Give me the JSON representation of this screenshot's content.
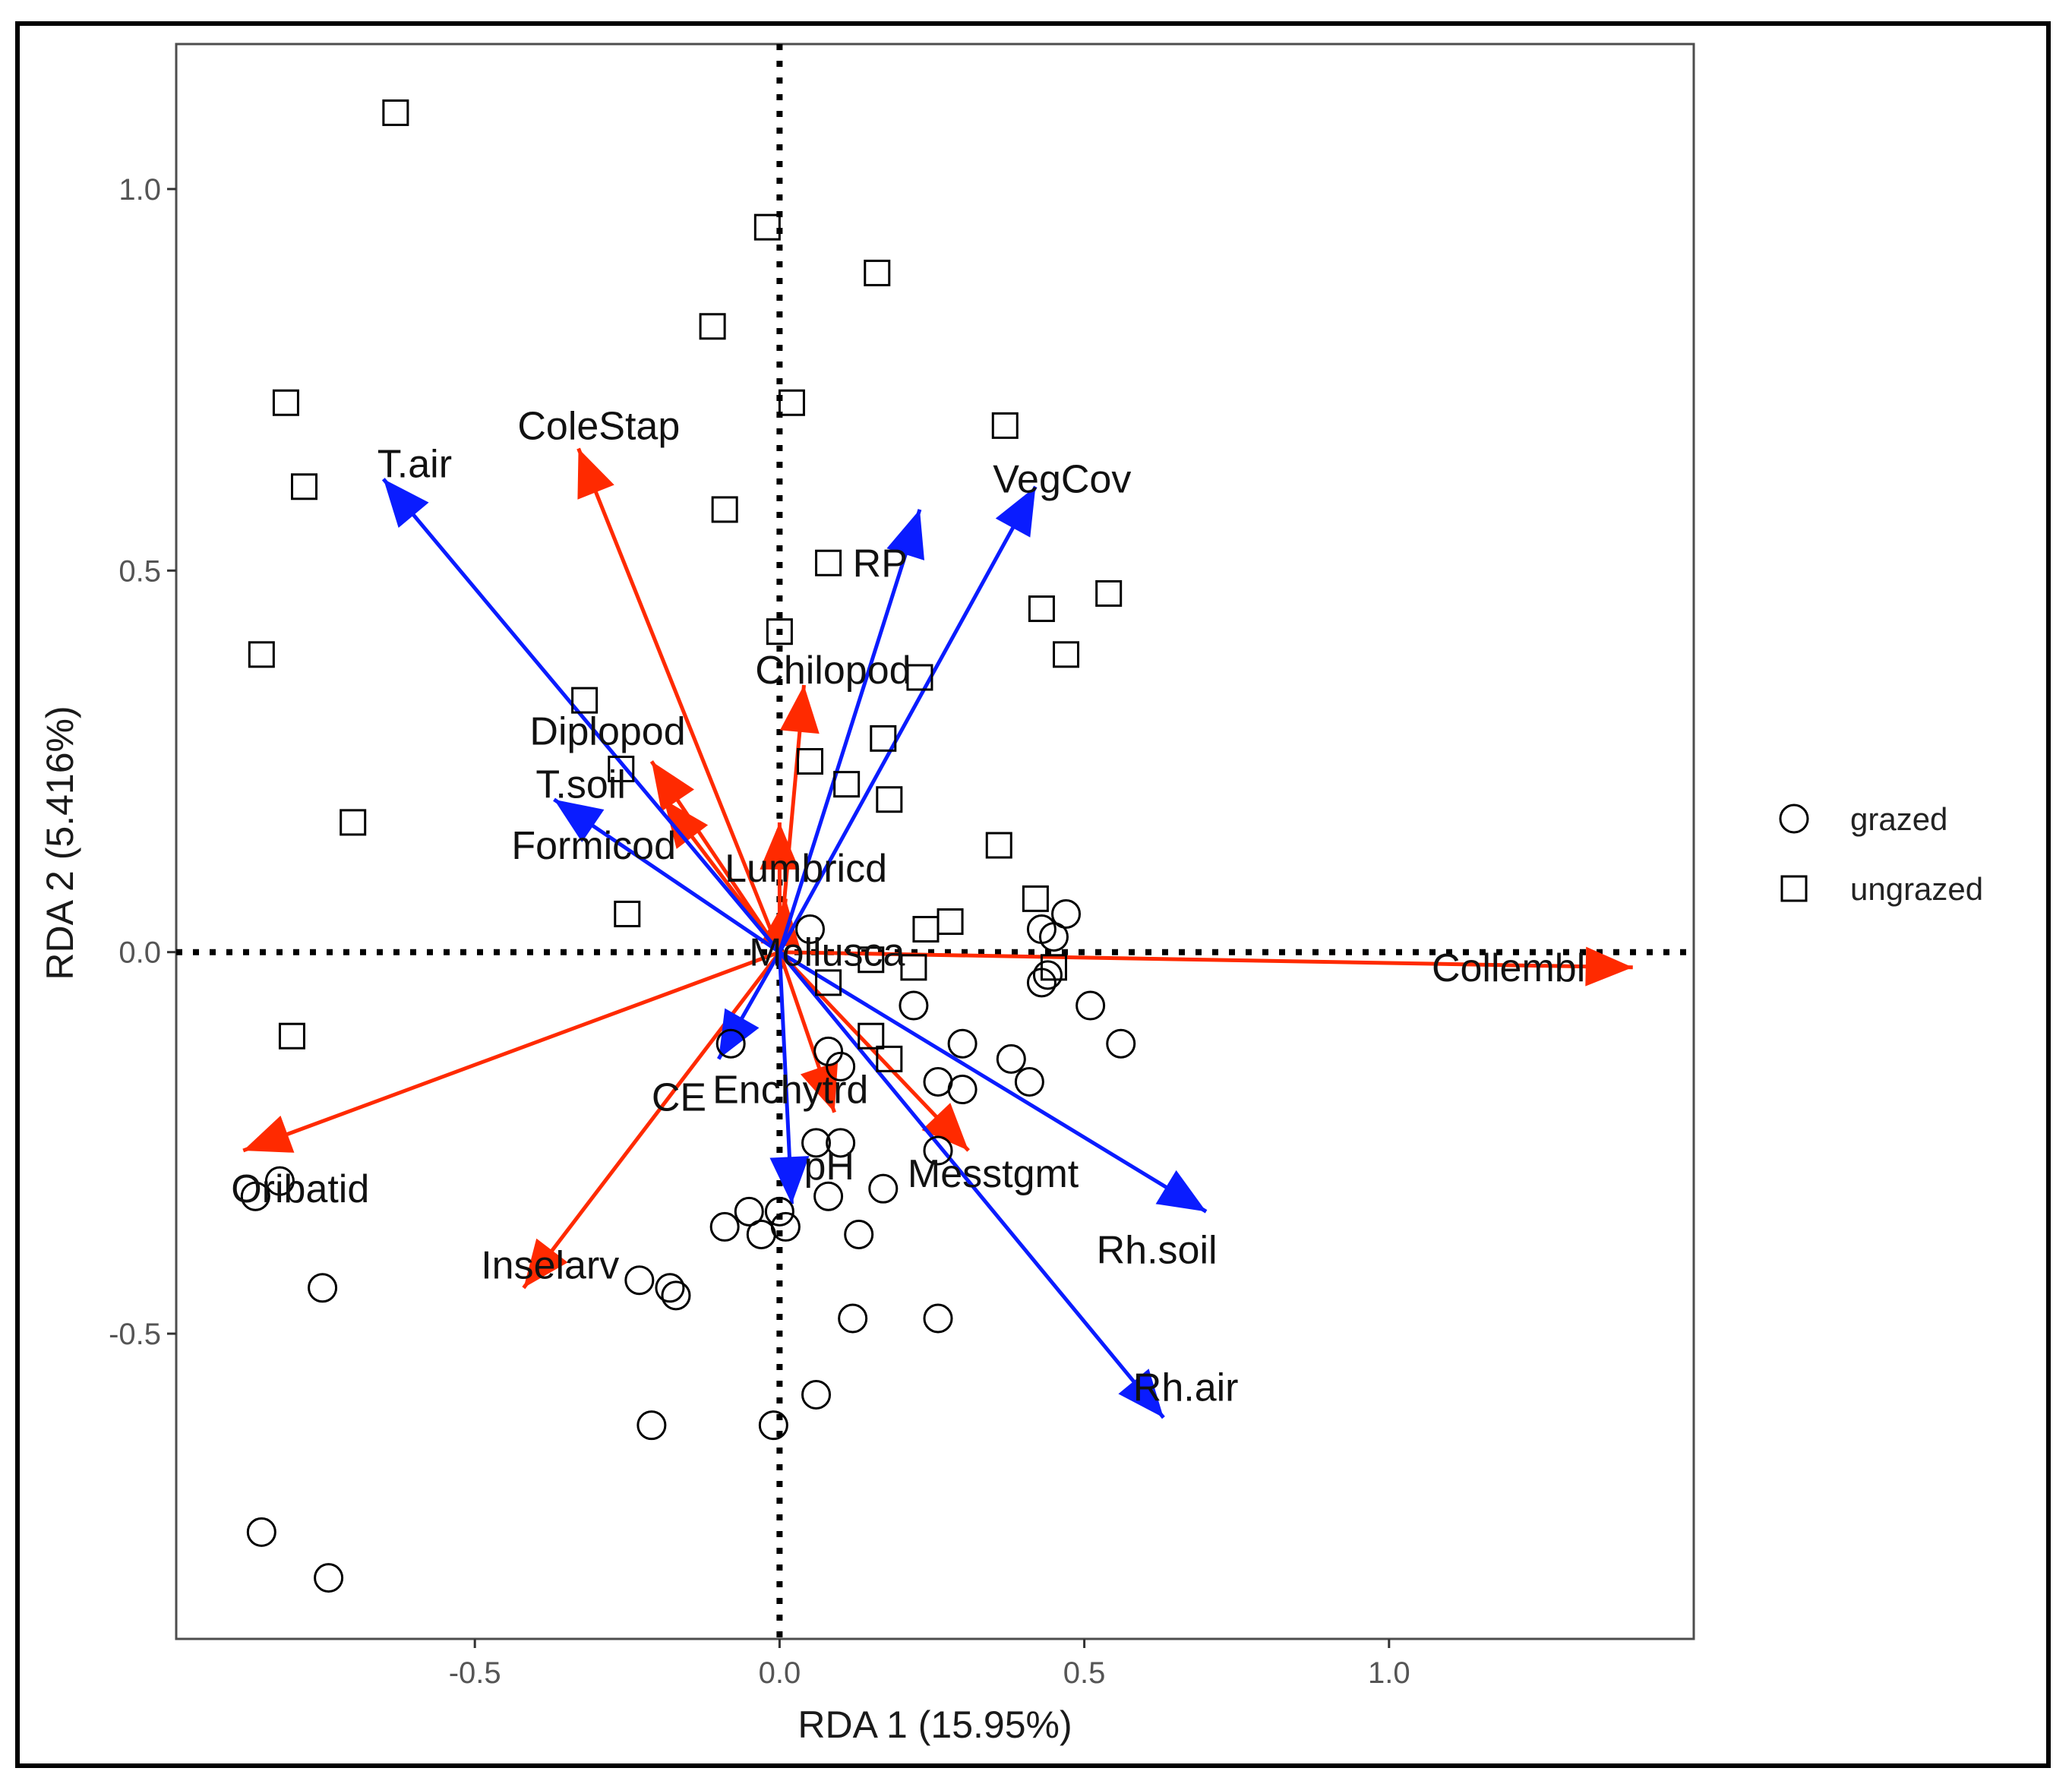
{
  "chart_data": {
    "type": "scatter",
    "xlabel": "RDA 1 (15.95%)",
    "ylabel": "RDA 2 (5.416%)",
    "xlim": [
      -0.99,
      1.5
    ],
    "ylim": [
      -0.9,
      1.19
    ],
    "xticks": [
      -0.5,
      0.0,
      0.5,
      1.0
    ],
    "xtick_labels": [
      "-0.5",
      "0.0",
      "0.5",
      "1.0"
    ],
    "yticks": [
      -0.5,
      0.0,
      0.5,
      1.0
    ],
    "ytick_labels": [
      "-0.5",
      "0.0",
      "0.5",
      "1.0"
    ],
    "grid": false,
    "reference_lines": {
      "x": 0,
      "y": 0,
      "style": "dotted"
    },
    "legend": {
      "position": "right",
      "entries": [
        {
          "label": "grazed",
          "shape": "circle"
        },
        {
          "label": "ungrazed",
          "shape": "square"
        }
      ]
    },
    "colors": {
      "species": "#ff2a00",
      "environment": "#0a1cff",
      "points": "#000000"
    },
    "series": [
      {
        "name": "grazed",
        "shape": "circle",
        "points": [
          [
            0.05,
            0.03
          ],
          [
            0.47,
            0.05
          ],
          [
            0.43,
            0.03
          ],
          [
            0.45,
            0.02
          ],
          [
            0.44,
            -0.03
          ],
          [
            0.43,
            -0.04
          ],
          [
            0.22,
            -0.07
          ],
          [
            0.51,
            -0.07
          ],
          [
            0.56,
            -0.12
          ],
          [
            0.3,
            -0.12
          ],
          [
            0.08,
            -0.13
          ],
          [
            0.38,
            -0.14
          ],
          [
            0.1,
            -0.15
          ],
          [
            0.26,
            -0.17
          ],
          [
            0.3,
            -0.18
          ],
          [
            0.41,
            -0.17
          ],
          [
            -0.08,
            -0.12
          ],
          [
            0.06,
            -0.25
          ],
          [
            0.1,
            -0.25
          ],
          [
            0.26,
            -0.26
          ],
          [
            0.08,
            -0.32
          ],
          [
            0.17,
            -0.31
          ],
          [
            -0.05,
            -0.34
          ],
          [
            0.0,
            -0.34
          ],
          [
            -0.09,
            -0.36
          ],
          [
            -0.03,
            -0.37
          ],
          [
            0.01,
            -0.36
          ],
          [
            0.13,
            -0.37
          ],
          [
            -0.23,
            -0.43
          ],
          [
            -0.18,
            -0.44
          ],
          [
            -0.17,
            -0.45
          ],
          [
            0.12,
            -0.48
          ],
          [
            0.26,
            -0.48
          ],
          [
            0.06,
            -0.58
          ],
          [
            -0.21,
            -0.62
          ],
          [
            -0.01,
            -0.62
          ],
          [
            -0.75,
            -0.44
          ],
          [
            -0.82,
            -0.3
          ],
          [
            -0.86,
            -0.32
          ],
          [
            -0.85,
            -0.76
          ],
          [
            -0.74,
            -0.82
          ]
        ]
      },
      {
        "name": "ungrazed",
        "shape": "square",
        "points": [
          [
            -0.63,
            1.1
          ],
          [
            -0.02,
            0.95
          ],
          [
            0.16,
            0.89
          ],
          [
            -0.11,
            0.82
          ],
          [
            0.02,
            0.72
          ],
          [
            -0.81,
            0.72
          ],
          [
            0.37,
            0.69
          ],
          [
            -0.78,
            0.61
          ],
          [
            -0.09,
            0.58
          ],
          [
            0.08,
            0.51
          ],
          [
            0.43,
            0.45
          ],
          [
            0.54,
            0.47
          ],
          [
            -0.85,
            0.39
          ],
          [
            0.0,
            0.42
          ],
          [
            0.47,
            0.39
          ],
          [
            0.23,
            0.36
          ],
          [
            -0.32,
            0.33
          ],
          [
            0.17,
            0.28
          ],
          [
            0.05,
            0.25
          ],
          [
            -0.26,
            0.24
          ],
          [
            0.11,
            0.22
          ],
          [
            0.18,
            0.2
          ],
          [
            -0.7,
            0.17
          ],
          [
            0.36,
            0.14
          ],
          [
            -0.25,
            0.05
          ],
          [
            0.42,
            0.07
          ],
          [
            0.24,
            0.03
          ],
          [
            0.28,
            0.04
          ],
          [
            0.15,
            -0.01
          ],
          [
            0.22,
            -0.02
          ],
          [
            0.08,
            -0.04
          ],
          [
            0.45,
            -0.02
          ],
          [
            0.15,
            -0.11
          ],
          [
            0.18,
            -0.14
          ],
          [
            -0.8,
            -0.11
          ]
        ]
      }
    ],
    "vectors": [
      {
        "name": "Collembl",
        "group": "species",
        "x": 1.4,
        "y": -0.02,
        "label_x": 1.07,
        "label_y": -0.02
      },
      {
        "name": "ColeStap",
        "group": "species",
        "x": -0.33,
        "y": 0.66,
        "label_x": -0.43,
        "label_y": 0.69
      },
      {
        "name": "Chilopod",
        "group": "species",
        "x": 0.04,
        "y": 0.35,
        "label_x": -0.04,
        "label_y": 0.37
      },
      {
        "name": "Diplopod",
        "group": "species",
        "x": -0.21,
        "y": 0.25,
        "label_x": -0.41,
        "label_y": 0.29
      },
      {
        "name": "Formicod",
        "group": "species",
        "x": -0.19,
        "y": 0.2,
        "label_x": -0.44,
        "label_y": 0.14
      },
      {
        "name": "Lumbricd",
        "group": "species",
        "x": 0.0,
        "y": 0.17,
        "label_x": -0.09,
        "label_y": 0.11
      },
      {
        "name": "Mollusca",
        "group": "species",
        "x": 0.01,
        "y": 0.07,
        "label_x": -0.05,
        "label_y": 0.0
      },
      {
        "name": "Enchytrd",
        "group": "species",
        "x": 0.09,
        "y": -0.21,
        "label_x": -0.11,
        "label_y": -0.18
      },
      {
        "name": "Messtgmt",
        "group": "species",
        "x": 0.31,
        "y": -0.26,
        "label_x": 0.21,
        "label_y": -0.29
      },
      {
        "name": "Inselarv",
        "group": "species",
        "x": -0.42,
        "y": -0.44,
        "label_x": -0.49,
        "label_y": -0.41
      },
      {
        "name": "Oribatid",
        "group": "species",
        "x": -0.88,
        "y": -0.26,
        "label_x": -0.9,
        "label_y": -0.31
      },
      {
        "name": "T.air",
        "group": "environment",
        "x": -0.65,
        "y": 0.62,
        "label_x": -0.66,
        "label_y": 0.64
      },
      {
        "name": "VegCov",
        "group": "environment",
        "x": 0.42,
        "y": 0.61,
        "label_x": 0.35,
        "label_y": 0.62
      },
      {
        "name": "RP",
        "group": "environment",
        "x": 0.23,
        "y": 0.58,
        "label_x": 0.12,
        "label_y": 0.51
      },
      {
        "name": "T.soil",
        "group": "environment",
        "x": -0.37,
        "y": 0.2,
        "label_x": -0.4,
        "label_y": 0.22
      },
      {
        "name": "CE",
        "group": "environment",
        "x": -0.1,
        "y": -0.14,
        "label_x": -0.21,
        "label_y": -0.19
      },
      {
        "name": "pH",
        "group": "environment",
        "x": 0.02,
        "y": -0.33,
        "label_x": 0.04,
        "label_y": -0.28
      },
      {
        "name": "Rh.soil",
        "group": "environment",
        "x": 0.7,
        "y": -0.34,
        "label_x": 0.52,
        "label_y": -0.39
      },
      {
        "name": "Rh.air",
        "group": "environment",
        "x": 0.63,
        "y": -0.61,
        "label_x": 0.58,
        "label_y": -0.57
      }
    ]
  }
}
